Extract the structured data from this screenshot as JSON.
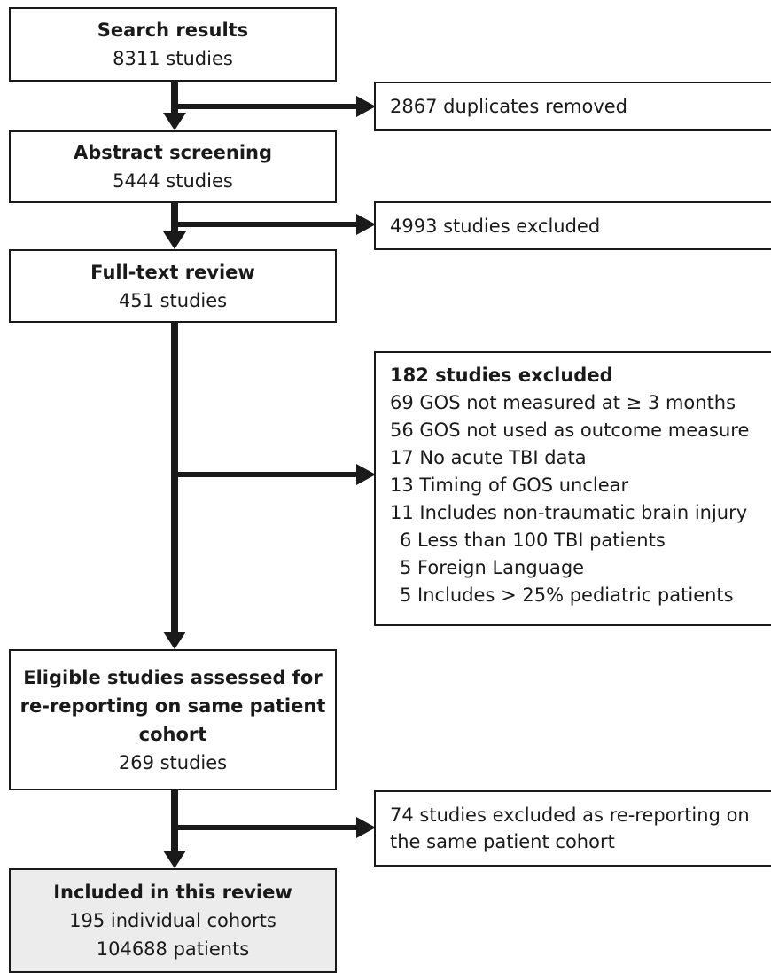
{
  "boxes": {
    "search": {
      "title": "Search results",
      "count": "8311 studies"
    },
    "abstract": {
      "title": "Abstract screening",
      "count": "5444 studies"
    },
    "fulltext": {
      "title": "Full-text review",
      "count": "451 studies"
    },
    "eligible": {
      "title_line1": "Eligible studies assessed for",
      "title_line2": "re-reporting on same patient",
      "title_line3": "cohort",
      "count": "269 studies"
    },
    "included": {
      "title": "Included in this review",
      "line1": "195 individual cohorts",
      "line2": "104688 patients",
      "fill": "#ececec"
    }
  },
  "exclusions": {
    "duplicates": "2867 duplicates removed",
    "abstract_excluded": "4993 studies excluded",
    "fulltext": {
      "header": "182 studies excluded",
      "items": [
        "69 GOS not measured at ≥ 3 months",
        "56 GOS not used as outcome measure",
        "17 No acute TBI data",
        "13 Timing of GOS unclear",
        "11 Includes non-traumatic brain injury",
        "6 Less than 100 TBI patients",
        "5 Foreign Language",
        "5 Includes > 25% pediatric patients"
      ]
    },
    "rereporting_line1": "74 studies excluded as re-reporting on",
    "rereporting_line2": "the same patient cohort"
  }
}
